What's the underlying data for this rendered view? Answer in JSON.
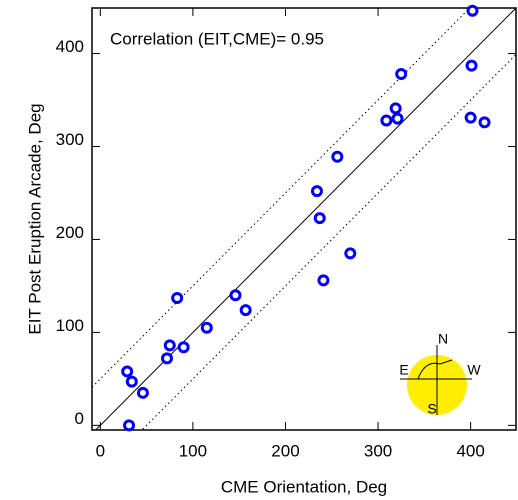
{
  "chart_data": {
    "type": "scatter",
    "annotation": "Correlation (EIT,CME)= 0.95",
    "x_label": "CME Orientation, Deg",
    "y_label": "EIT Post Eruption Arcade, Deg",
    "color": "#0000ff",
    "x": [
      402,
      401,
      325,
      319,
      321,
      309,
      400,
      415,
      256,
      234,
      237,
      270,
      241,
      146,
      83,
      157,
      115,
      75,
      90,
      72,
      29,
      34,
      46,
      31
    ],
    "y": [
      446,
      387,
      378,
      341,
      330,
      328,
      331,
      326,
      289,
      252,
      223,
      185,
      156,
      140,
      137,
      124,
      105,
      86,
      84,
      72,
      58,
      47,
      35,
      0
    ],
    "xlim": [
      -9,
      449
    ],
    "ylim": [
      -5,
      449
    ],
    "xticks": [
      0,
      100,
      200,
      300,
      400
    ],
    "yticks": [
      0,
      100,
      200,
      300,
      400
    ],
    "reference_lines": [
      {
        "slope": 1,
        "intercept": 0,
        "style": "solid"
      },
      {
        "slope": 1,
        "intercept": 50,
        "style": "dotted"
      },
      {
        "slope": 1,
        "intercept": -50,
        "style": "dotted"
      }
    ],
    "inset_labels": {
      "north": "N",
      "south": "S",
      "east": "E",
      "west": "W"
    }
  }
}
